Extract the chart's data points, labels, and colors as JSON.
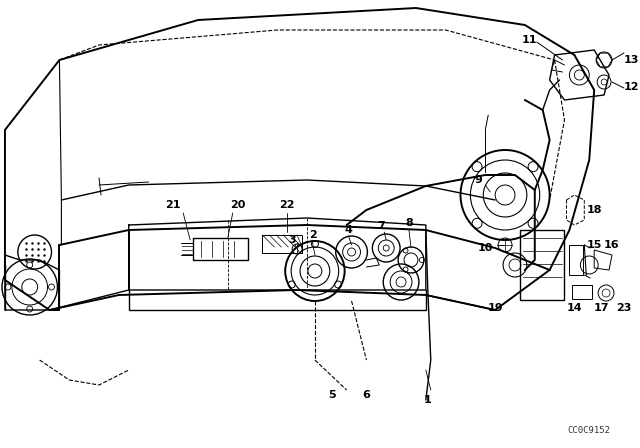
{
  "bg_color": "#ffffff",
  "line_color": "#000000",
  "fig_width": 6.4,
  "fig_height": 4.48,
  "dpi": 100,
  "watermark": "CC0C9152",
  "label_fontsize": 8,
  "label_fontweight": "bold"
}
